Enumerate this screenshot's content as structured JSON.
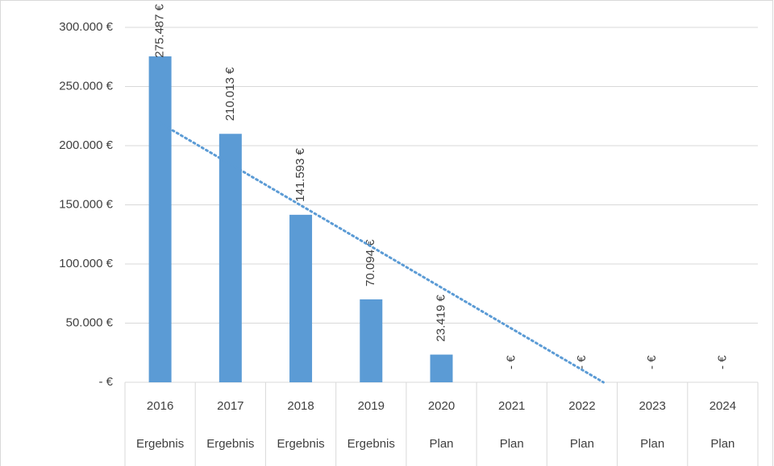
{
  "chart_data": {
    "type": "bar",
    "categories": [
      "2016",
      "2017",
      "2018",
      "2019",
      "2020",
      "2021",
      "2022",
      "2023",
      "2024"
    ],
    "groups": [
      "Ergebnis",
      "Ergebnis",
      "Ergebnis",
      "Ergebnis",
      "Plan",
      "Plan",
      "Plan",
      "Plan",
      "Plan"
    ],
    "values": [
      275487,
      210013,
      141593,
      70094,
      23419,
      0,
      0,
      0,
      0
    ],
    "value_labels": [
      "275.487 €",
      "210.013 €",
      "141.593 €",
      "70.094 €",
      "23.419 €",
      "- €",
      "- €",
      "- €",
      "- €"
    ],
    "color": "#5b9bd5",
    "trendline": "linear",
    "trendline_color": "#5b9bd5",
    "ylim": [
      0,
      300000
    ],
    "yticks": [
      {
        "value": 0,
        "label": "- €"
      },
      {
        "value": 50000,
        "label": "50.000 €"
      },
      {
        "value": 100000,
        "label": "100.000 €"
      },
      {
        "value": 150000,
        "label": "150.000 €"
      },
      {
        "value": 200000,
        "label": "200.000 €"
      },
      {
        "value": 250000,
        "label": "250.000 €"
      },
      {
        "value": 300000,
        "label": "300.000 €"
      }
    ],
    "grid": true
  }
}
